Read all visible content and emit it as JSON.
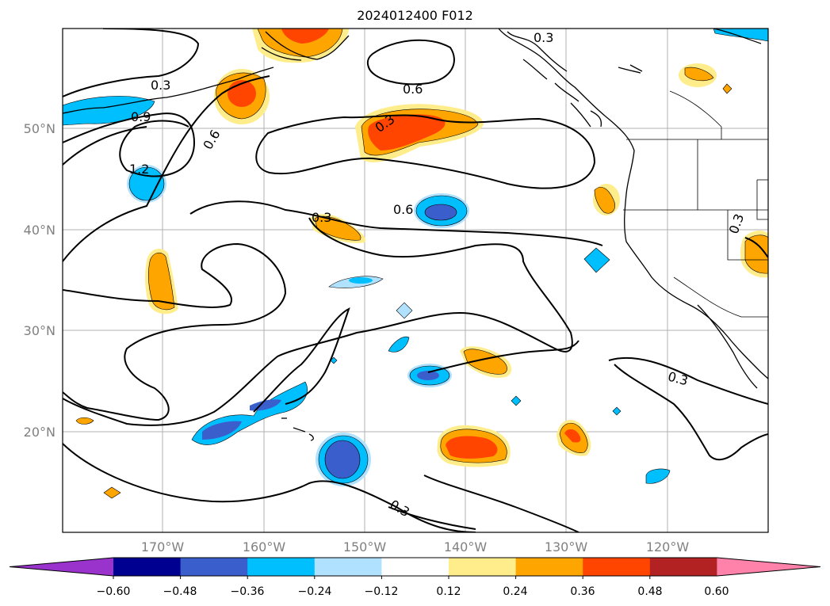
{
  "title": "2024012400 F012",
  "map": {
    "lon_labels": [
      "170°W",
      "160°W",
      "150°W",
      "140°W",
      "130°W",
      "120°W"
    ],
    "lat_labels": [
      "50°N",
      "40°N",
      "30°N",
      "20°N"
    ],
    "contour_labels": [
      "0.3",
      "0.9",
      "1.2",
      "0.6",
      "0.6",
      "0.3",
      "0.6",
      "0.3",
      "0.3",
      "0.3",
      "0.3",
      "0.3"
    ]
  },
  "colorbar": {
    "ticks": [
      "−0.60",
      "−0.48",
      "−0.36",
      "−0.24",
      "−0.12",
      "0.12",
      "0.24",
      "0.36",
      "0.48",
      "0.60"
    ],
    "colors": [
      "#9933cc",
      "#000090",
      "#3a5fcd",
      "#00bfff",
      "#b0e2ff",
      "#ffffff",
      "#ffec8b",
      "#ffa500",
      "#ff4500",
      "#b22222",
      "#ff82ab"
    ]
  },
  "colors": {
    "light_blue": "#b0e2ff",
    "blue": "#00bfff",
    "mid_blue": "#3a5fcd",
    "light_orange": "#ffec8b",
    "orange": "#ffa500",
    "red_orange": "#ff4500",
    "grid": "#b0b0b0"
  }
}
